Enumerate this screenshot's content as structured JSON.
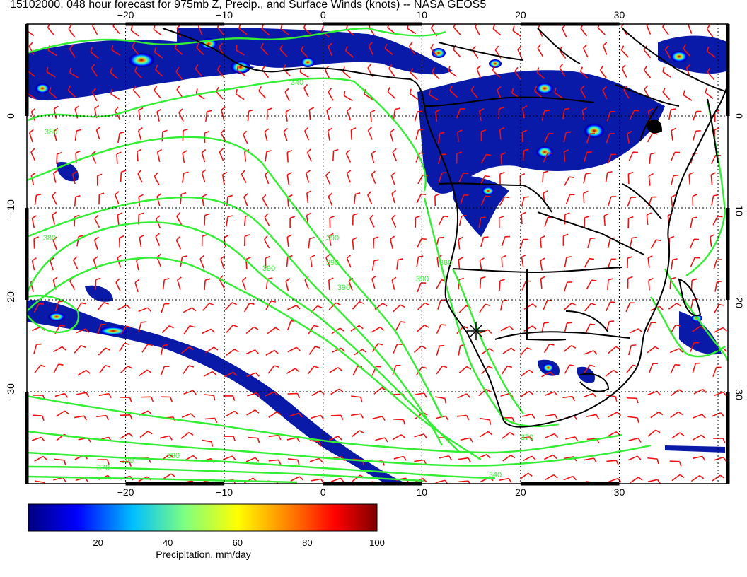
{
  "title": "15102000, 048 hour forecast for 975mb Z, Precip., and Surface Winds (knots) -- NASA GEOS5",
  "map": {
    "lon_ticks": [
      "−20",
      "−10",
      "0",
      "10",
      "20",
      "30"
    ],
    "lat_ticks": [
      "0",
      "−10",
      "−20",
      "−30"
    ],
    "lon_range": [
      -30,
      41
    ],
    "lat_range": [
      -40,
      10
    ],
    "contour_labels": [
      "380",
      "380",
      "340",
      "380",
      "390",
      "390",
      "390",
      "390",
      "370",
      "390",
      "390",
      "380",
      "370",
      "340"
    ],
    "colors": {
      "contour": "#33ee33",
      "wind_barb": "#ee1111",
      "coastline": "#000000",
      "grid": "#000000"
    }
  },
  "colorbar": {
    "label": "Precipitation, mm/day",
    "ticks": [
      "20",
      "40",
      "60",
      "80",
      "100"
    ],
    "range": [
      0,
      100
    ],
    "colors": [
      "#00007f",
      "#0000ff",
      "#00bfff",
      "#7fff7f",
      "#ffff00",
      "#ff7f00",
      "#ff0000",
      "#7f0000"
    ]
  }
}
